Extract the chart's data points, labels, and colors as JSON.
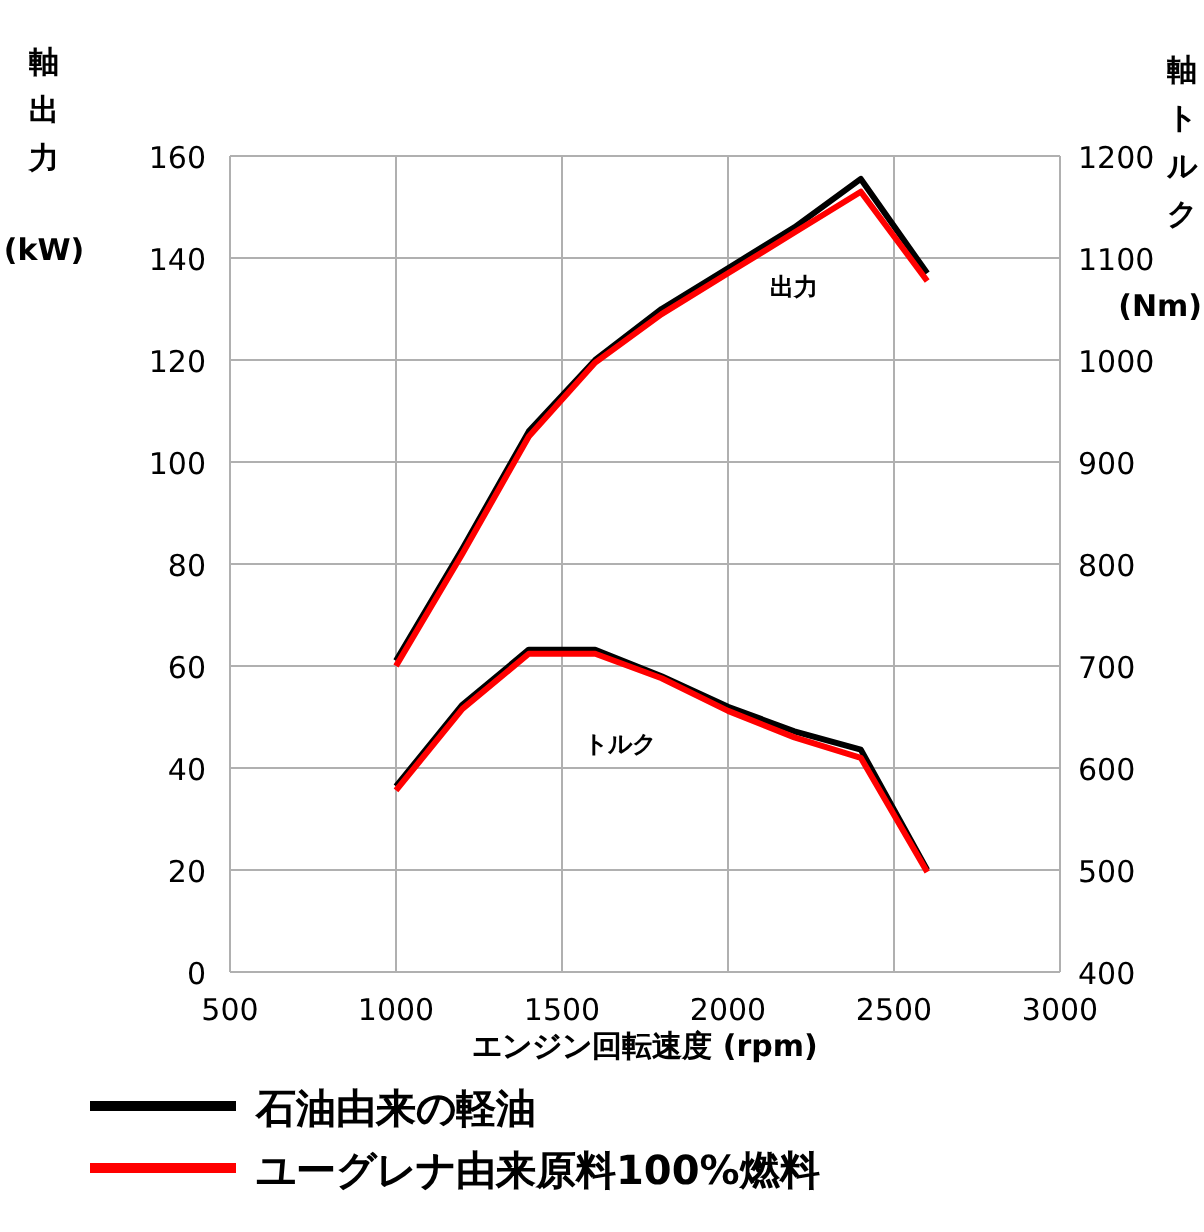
{
  "chart_data": {
    "type": "line",
    "xlabel": "エンジン回転速度 (rpm)",
    "ylabel": "軸出力(kW)",
    "y2label": "軸トルク(Nm)",
    "x": [
      1000,
      1200,
      1400,
      1600,
      1800,
      2000,
      2200,
      2400,
      2600
    ],
    "series": [
      {
        "name": "石油由来の軽油",
        "color": "#000000",
        "values": [
          61,
          83,
          106,
          120,
          130,
          138,
          146,
          155.5,
          137
        ]
      },
      {
        "name": "ユーグレナ由来原料100%燃料",
        "color": "#ff0000",
        "values": [
          60,
          82,
          105,
          119.5,
          129,
          137,
          145,
          153,
          135.5
        ]
      },
      {
        "color": "#000000",
        "axis": "y2",
        "values": [
          582,
          662,
          716,
          716,
          690,
          660,
          636,
          618,
          500
        ]
      },
      {
        "color": "#ff0000",
        "axis": "y2",
        "values": [
          578,
          658,
          712,
          712,
          688,
          656,
          630,
          610,
          498
        ]
      }
    ],
    "xlim": [
      500,
      3000
    ],
    "xticks": [
      500,
      1000,
      1500,
      2000,
      2500,
      3000
    ],
    "ylim": [
      0,
      160
    ],
    "yticks": [
      0,
      20,
      40,
      60,
      80,
      100,
      120,
      140,
      160
    ],
    "y2lim": [
      400,
      1200
    ],
    "y2ticks": [
      400,
      500,
      600,
      700,
      800,
      900,
      1000,
      1100,
      1200
    ],
    "annotations": [
      "出力",
      "トルク"
    ],
    "grid": true,
    "legend": "bottom",
    "marker": "none",
    "line_style": "solid"
  }
}
